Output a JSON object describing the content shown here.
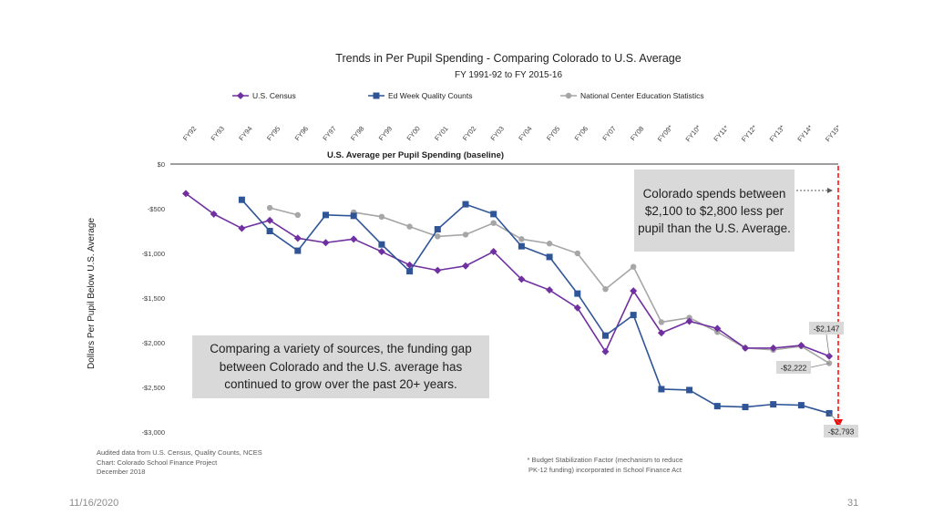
{
  "chart_data": {
    "type": "line",
    "title": "Trends in Per Pupil Spending - Comparing Colorado to U.S. Average",
    "subtitle": "FY 1991-92 to FY 2015-16",
    "ylabel": "Dollars Per Pupil Below U.S. Average",
    "baseline_label": "U.S. Average per Pupil Spending (baseline)",
    "ylim": [
      -3000,
      0
    ],
    "y_ticks": [
      0,
      -500,
      -1000,
      -1500,
      -2000,
      -2500,
      -3000
    ],
    "y_tick_labels": [
      "$0",
      "-$500",
      "-$1,000",
      "-$1,500",
      "-$2,000",
      "-$2,500",
      "-$3,000"
    ],
    "categories": [
      "FY92",
      "FY93",
      "FY94",
      "FY95",
      "FY96",
      "FY97",
      "FY98",
      "FY99",
      "FY00",
      "FY01",
      "FY02",
      "FY03",
      "FY04",
      "FY05",
      "FY06",
      "FY07",
      "FY08",
      "FY09*",
      "FY10*",
      "FY11*",
      "FY12*",
      "FY13*",
      "FY14*",
      "FY15*"
    ],
    "series": [
      {
        "name": "U.S. Census",
        "color": "#7030a0",
        "marker": "diamond",
        "values": [
          -330,
          -560,
          -720,
          -630,
          -830,
          -880,
          -840,
          -980,
          -1130,
          -1190,
          -1140,
          -980,
          -1290,
          -1410,
          -1610,
          -2100,
          -1420,
          -1890,
          -1760,
          -1840,
          -2060,
          -2060,
          -2030,
          -2150
        ]
      },
      {
        "name": "Ed Week Quality Counts",
        "color": "#2f5597",
        "marker": "square",
        "values": [
          null,
          null,
          -400,
          -750,
          -970,
          -570,
          -580,
          -900,
          -1200,
          -730,
          -450,
          -560,
          -920,
          -1040,
          -1450,
          -1920,
          -1690,
          -2520,
          -2530,
          -2710,
          -2720,
          -2690,
          -2700,
          -2790
        ]
      },
      {
        "name": "National Center Education Statistics",
        "color": "#a6a6a6",
        "marker": "circle",
        "values": [
          null,
          null,
          null,
          -490,
          -570,
          null,
          -540,
          -590,
          -700,
          -810,
          -790,
          -660,
          -840,
          -890,
          -1000,
          -1400,
          -1150,
          -1770,
          -1720,
          -1880,
          -2060,
          -2080,
          -2040,
          -2230
        ]
      }
    ],
    "data_labels": [
      {
        "series": "U.S. Census",
        "category": "FY15*",
        "text": "-$2,147"
      },
      {
        "series": "National Center Education Statistics",
        "category": "FY15*",
        "text": "-$2,222"
      },
      {
        "series": "Ed Week Quality Counts",
        "category": "FY15*",
        "text": "-$2,793"
      }
    ],
    "annotations": [
      "Colorado spends between $2,100 to $2,800 less per pupil than the U.S. Average.",
      "Comparing a variety of sources, the funding gap between Colorado and the U.S. average has continued to grow over the past 20+ years."
    ],
    "legend_position": "top",
    "grid": false
  },
  "callouts": {
    "right": "Colorado spends between $2,100 to $2,800 less per pupil than the U.S. Average.",
    "left": "Comparing a variety of sources, the funding gap between Colorado and the U.S. average has continued to grow over the past 20+ years."
  },
  "notes": {
    "source_lines": [
      "Audited data from U.S. Census, Quality Counts, NCES",
      "Chart: Colorado School Finance Project",
      "December 2018"
    ],
    "bsf_lines": [
      "* Budget Stabilization Factor (mechanism to reduce",
      "PK-12 funding) incorporated in School Finance Act"
    ]
  },
  "footer": {
    "date": "11/16/2020",
    "page": "31"
  }
}
